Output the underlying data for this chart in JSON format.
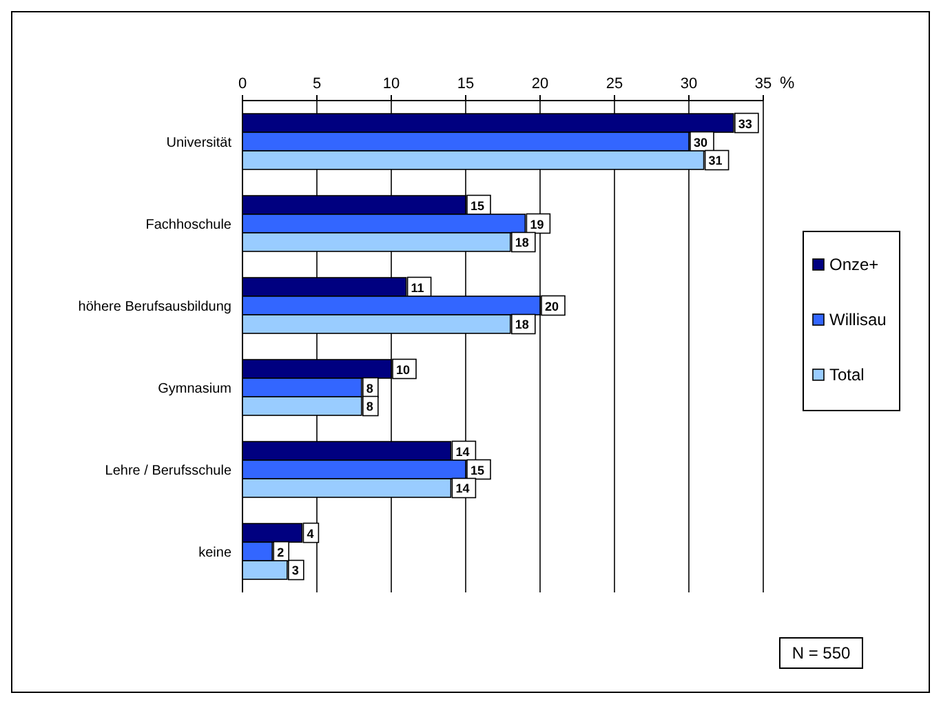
{
  "chart_data": {
    "type": "bar",
    "orientation": "horizontal",
    "xlabel": "%",
    "categories": [
      "Universität",
      "Fachhoschule",
      "höhere Berufsausbildung",
      "Gymnasium",
      "Lehre / Berufsschule",
      "keine"
    ],
    "series": [
      {
        "name": "Onze+",
        "color": "#000080",
        "values": [
          33,
          15,
          11,
          10,
          14,
          4
        ]
      },
      {
        "name": "Willisau",
        "color": "#3366ff",
        "values": [
          30,
          19,
          20,
          8,
          15,
          2
        ]
      },
      {
        "name": "Total",
        "color": "#99ccff",
        "values": [
          31,
          18,
          18,
          8,
          14,
          3
        ]
      }
    ],
    "xlim": [
      0,
      35
    ],
    "xticks": [
      0,
      5,
      10,
      15,
      20,
      25,
      30,
      35
    ],
    "grid": "x",
    "legend": "right",
    "data_labels": true,
    "annotations": [
      "N = 550"
    ]
  }
}
